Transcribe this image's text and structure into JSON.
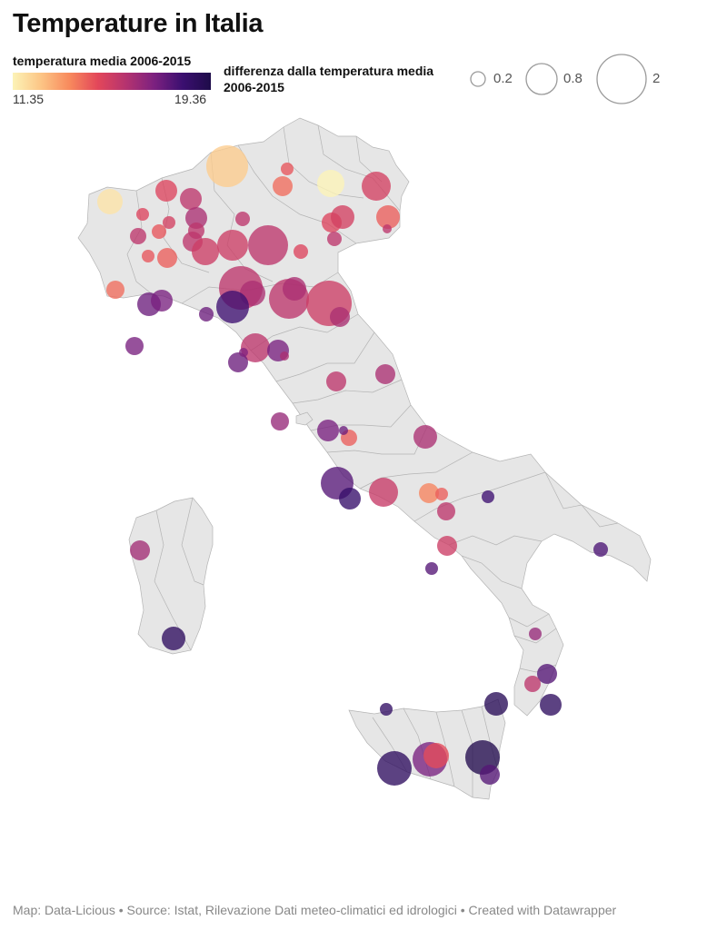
{
  "title": "Temperature in Italia",
  "legend": {
    "color_title": "temperatura media 2006-2015",
    "min_label": "11.35",
    "max_label": "19.36",
    "gradient_colors": [
      "#fcf3b7",
      "#fcc585",
      "#f88a5d",
      "#e3475a",
      "#b5336f",
      "#7c2180",
      "#3b0f70",
      "#1e0b49"
    ],
    "size_title": "differenza dalla temperatura media 2006-2015",
    "size_items": [
      {
        "label": "0.2",
        "value": 0.2
      },
      {
        "label": "0.8",
        "value": 0.8
      },
      {
        "label": "2",
        "value": 2
      }
    ]
  },
  "footer": "Map: Data-Licious • Source: Istat, Rilevazione Dati meteo-climatici ed idrologici • Created with Datawrapper",
  "colors": {
    "land": "#e6e6e6",
    "border": "#b4b4b4"
  },
  "bubble_style": {
    "opacity": 0.78
  }
}
